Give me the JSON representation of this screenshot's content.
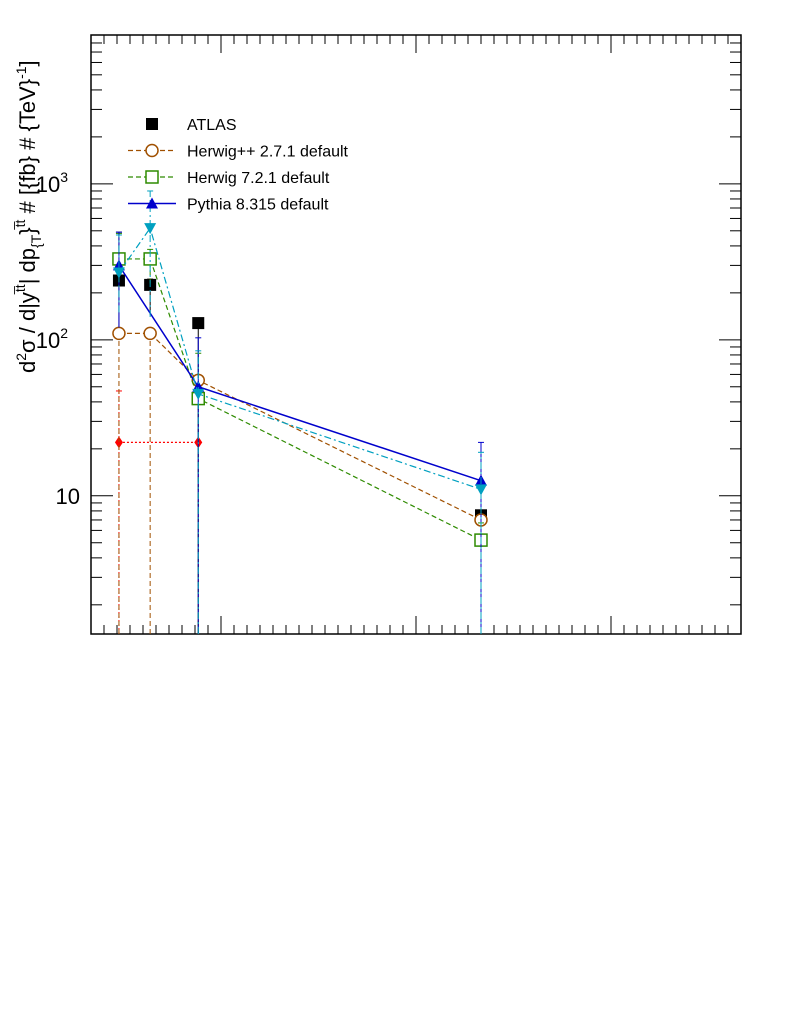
{
  "chart_data": {
    "type": "line",
    "title": "",
    "xlabel": "",
    "ylabel": "d2σ / d|ytt| dp{T}tt # [{fb} # {TeV}-1]",
    "ylabel_parts": {
      "base": "d",
      "sup1": "2",
      "mid1": "σ / d|y",
      "sup2": "t̅t",
      "mid2": "| dp",
      "sub1": "{T",
      "mid3": "}",
      "sup3": "t̅t",
      "mid4": " # [{fb} # {TeV}",
      "sup4": "-1",
      "end": "]"
    },
    "yscale": "log",
    "ylim": [
      1.3,
      9000
    ],
    "xlim": [
      0,
      1000
    ],
    "y_ticks": [
      {
        "value": 10,
        "label": "10"
      },
      {
        "value": 100,
        "label": "10",
        "exp": "2"
      },
      {
        "value": 1000,
        "label": "10",
        "exp": "3"
      }
    ],
    "x_major_ticks": [
      0,
      200,
      500,
      800
    ],
    "grid": false,
    "legend_position": "top-left",
    "series": [
      {
        "name": "ATLAS",
        "color": "#000000",
        "marker": "filled-square",
        "line": "none",
        "x": [
          43,
          91,
          165,
          600
        ],
        "y": [
          240,
          225,
          128,
          7.5
        ],
        "err_lo": [
          120,
          80,
          126.7,
          0
        ],
        "err_hi": [
          250,
          20,
          0,
          0
        ]
      },
      {
        "name": "",
        "color": "#ff0000",
        "marker": "filled-diamond",
        "line": "dotted",
        "x": [
          43,
          165
        ],
        "y": [
          22,
          22
        ],
        "err_lo": [
          20.7,
          20.7
        ],
        "err_hi": [
          25,
          20
        ]
      },
      {
        "name": "Herwig++ 2.7.1 default",
        "color": "#a05000",
        "marker": "open-circle",
        "line": "dashed",
        "x": [
          43,
          91,
          165,
          600
        ],
        "y": [
          110,
          110,
          55,
          7
        ],
        "err_lo": [
          108.7,
          108.7,
          53.7,
          5.7
        ],
        "err_hi": [
          0,
          0,
          0,
          0
        ]
      },
      {
        "name": "Herwig 7.2.1 default",
        "color": "#2e8b00",
        "marker": "open-square",
        "line": "dashed",
        "x": [
          43,
          91,
          165,
          600
        ],
        "y": [
          330,
          330,
          42,
          5.2
        ],
        "err_lo": [
          120,
          100,
          40.7,
          3.9
        ],
        "err_hi": [
          150,
          50,
          40,
          1.5
        ]
      },
      {
        "name": "Pythia 8.315 default",
        "color": "#0000cc",
        "marker": "filled-triangle-up",
        "line": "solid",
        "x": [
          43,
          165,
          600
        ],
        "y": [
          300,
          50,
          12.5
        ],
        "err_lo": [
          180,
          48.7,
          11.2
        ],
        "err_hi": [
          190,
          53,
          9.5
        ]
      },
      {
        "name": "",
        "color": "#00a0c0",
        "marker": "filled-triangle-down",
        "line": "dashdot",
        "x": [
          43,
          91,
          165,
          600
        ],
        "y": [
          270,
          520,
          45,
          11
        ],
        "err_lo": [
          120,
          380,
          43.7,
          9.7
        ],
        "err_hi": [
          200,
          380,
          40,
          8
        ]
      }
    ]
  }
}
